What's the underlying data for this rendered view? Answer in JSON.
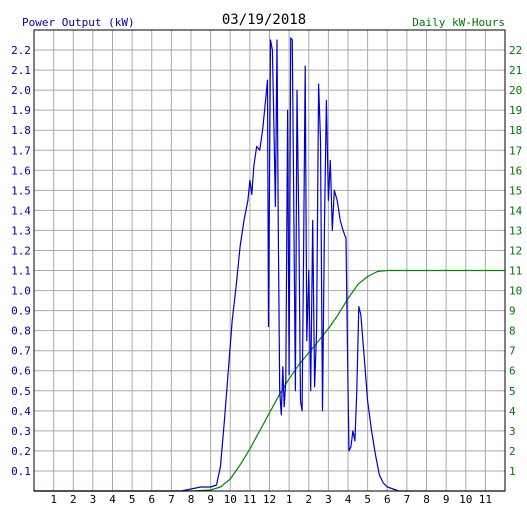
{
  "chart_data": {
    "type": "line",
    "title": "03/19/2018",
    "left_axis_label": "Power Output (kW)",
    "right_axis_label": "Daily kW-Hours",
    "x_ticks": [
      "1",
      "2",
      "3",
      "4",
      "5",
      "6",
      "7",
      "8",
      "9",
      "10",
      "11",
      "12",
      "1",
      "2",
      "3",
      "4",
      "5",
      "6",
      "7",
      "8",
      "9",
      "10",
      "11"
    ],
    "left_ticks": [
      "0.1",
      "0.2",
      "0.3",
      "0.4",
      "0.5",
      "0.6",
      "0.7",
      "0.8",
      "0.9",
      "1.0",
      "1.1",
      "1.2",
      "1.3",
      "1.4",
      "1.5",
      "1.6",
      "1.7",
      "1.8",
      "1.9",
      "2.0",
      "2.1",
      "2.2"
    ],
    "right_ticks": [
      "1",
      "2",
      "3",
      "4",
      "5",
      "6",
      "7",
      "8",
      "9",
      "10",
      "11",
      "12",
      "13",
      "14",
      "15",
      "16",
      "17",
      "18",
      "19",
      "20",
      "21",
      "22"
    ],
    "xlim": [
      0,
      24
    ],
    "ylim_left": [
      0,
      2.3
    ],
    "ylim_right": [
      0,
      23
    ],
    "grid": true,
    "colors": {
      "power": "#0000cc",
      "energy": "#008800",
      "left_axis_text": "#0000aa",
      "right_axis_text": "#007700",
      "grid": "#aaaaaa",
      "frame": "#000000"
    },
    "series": [
      {
        "name": "Power Output (kW)",
        "axis": "left",
        "points": [
          [
            0.0,
            0.0
          ],
          [
            7.5,
            0.0
          ],
          [
            8.0,
            0.01
          ],
          [
            8.5,
            0.02
          ],
          [
            9.0,
            0.02
          ],
          [
            9.3,
            0.03
          ],
          [
            9.5,
            0.12
          ],
          [
            9.7,
            0.35
          ],
          [
            9.9,
            0.6
          ],
          [
            10.1,
            0.85
          ],
          [
            10.3,
            1.02
          ],
          [
            10.5,
            1.22
          ],
          [
            10.7,
            1.35
          ],
          [
            10.9,
            1.45
          ],
          [
            11.0,
            1.55
          ],
          [
            11.1,
            1.48
          ],
          [
            11.2,
            1.62
          ],
          [
            11.35,
            1.72
          ],
          [
            11.5,
            1.7
          ],
          [
            11.65,
            1.8
          ],
          [
            11.8,
            1.95
          ],
          [
            11.9,
            2.05
          ],
          [
            11.95,
            0.82
          ],
          [
            12.05,
            2.25
          ],
          [
            12.15,
            2.2
          ],
          [
            12.22,
            1.85
          ],
          [
            12.3,
            1.42
          ],
          [
            12.38,
            2.25
          ],
          [
            12.45,
            1.3
          ],
          [
            12.52,
            0.5
          ],
          [
            12.6,
            0.38
          ],
          [
            12.68,
            0.62
          ],
          [
            12.75,
            0.42
          ],
          [
            12.83,
            0.55
          ],
          [
            12.92,
            1.9
          ],
          [
            13.0,
            0.58
          ],
          [
            13.08,
            2.26
          ],
          [
            13.16,
            2.25
          ],
          [
            13.24,
            1.4
          ],
          [
            13.32,
            0.5
          ],
          [
            13.4,
            2.0
          ],
          [
            13.5,
            1.3
          ],
          [
            13.58,
            0.45
          ],
          [
            13.66,
            0.4
          ],
          [
            13.74,
            1.2
          ],
          [
            13.82,
            2.12
          ],
          [
            13.9,
            0.75
          ],
          [
            14.0,
            1.1
          ],
          [
            14.1,
            0.5
          ],
          [
            14.2,
            1.35
          ],
          [
            14.3,
            0.52
          ],
          [
            14.4,
            0.8
          ],
          [
            14.5,
            2.03
          ],
          [
            14.6,
            1.75
          ],
          [
            14.7,
            0.4
          ],
          [
            14.8,
            1.3
          ],
          [
            14.9,
            1.95
          ],
          [
            15.0,
            1.45
          ],
          [
            15.1,
            1.65
          ],
          [
            15.2,
            1.3
          ],
          [
            15.3,
            1.5
          ],
          [
            15.45,
            1.45
          ],
          [
            15.6,
            1.35
          ],
          [
            15.75,
            1.3
          ],
          [
            15.9,
            1.26
          ],
          [
            16.0,
            0.52
          ],
          [
            16.05,
            0.2
          ],
          [
            16.15,
            0.22
          ],
          [
            16.25,
            0.3
          ],
          [
            16.35,
            0.25
          ],
          [
            16.45,
            0.5
          ],
          [
            16.55,
            0.92
          ],
          [
            16.65,
            0.88
          ],
          [
            16.8,
            0.7
          ],
          [
            17.0,
            0.45
          ],
          [
            17.2,
            0.3
          ],
          [
            17.4,
            0.18
          ],
          [
            17.6,
            0.08
          ],
          [
            17.8,
            0.04
          ],
          [
            18.0,
            0.02
          ],
          [
            18.3,
            0.01
          ],
          [
            18.6,
            0.0
          ],
          [
            24.0,
            0.0
          ]
        ]
      },
      {
        "name": "Daily kW-Hours",
        "axis": "right",
        "points": [
          [
            0.0,
            0.0
          ],
          [
            8.0,
            0.0
          ],
          [
            9.0,
            0.05
          ],
          [
            9.5,
            0.2
          ],
          [
            10.0,
            0.6
          ],
          [
            10.5,
            1.3
          ],
          [
            11.0,
            2.1
          ],
          [
            11.5,
            3.0
          ],
          [
            12.0,
            3.9
          ],
          [
            12.5,
            4.8
          ],
          [
            13.0,
            5.6
          ],
          [
            13.5,
            6.3
          ],
          [
            14.0,
            6.9
          ],
          [
            14.5,
            7.5
          ],
          [
            15.0,
            8.1
          ],
          [
            15.5,
            8.8
          ],
          [
            16.0,
            9.6
          ],
          [
            16.5,
            10.3
          ],
          [
            17.0,
            10.7
          ],
          [
            17.5,
            10.95
          ],
          [
            18.0,
            11.0
          ],
          [
            24.0,
            11.0
          ]
        ]
      }
    ]
  }
}
